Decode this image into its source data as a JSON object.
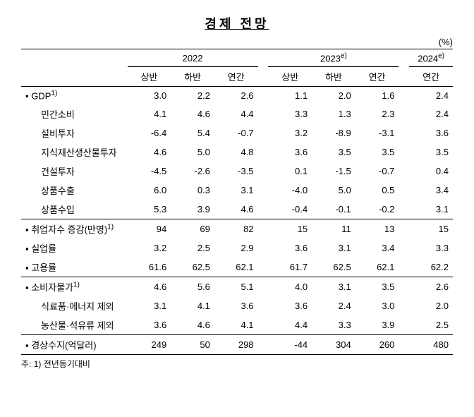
{
  "title": "경제 전망",
  "unit": "(%)",
  "headers": {
    "y2022": "2022",
    "y2023": "2023",
    "y2024": "2024",
    "sup_e": "e)",
    "h1": "상반",
    "h2": "하반",
    "annual": "연간"
  },
  "rows": [
    {
      "label": "▪ GDP",
      "sup": "1)",
      "indent": false,
      "v": [
        "3.0",
        "2.2",
        "2.6",
        "1.1",
        "2.0",
        "1.6",
        "2.4"
      ]
    },
    {
      "label": "민간소비",
      "sup": "",
      "indent": true,
      "v": [
        "4.1",
        "4.6",
        "4.4",
        "3.3",
        "1.3",
        "2.3",
        "2.4"
      ]
    },
    {
      "label": "설비투자",
      "sup": "",
      "indent": true,
      "v": [
        "-6.4",
        "5.4",
        "-0.7",
        "3.2",
        "-8.9",
        "-3.1",
        "3.6"
      ]
    },
    {
      "label": "지식재산생산물투자",
      "sup": "",
      "indent": true,
      "v": [
        "4.6",
        "5.0",
        "4.8",
        "3.6",
        "3.5",
        "3.5",
        "3.5"
      ]
    },
    {
      "label": "건설투자",
      "sup": "",
      "indent": true,
      "v": [
        "-4.5",
        "-2.6",
        "-3.5",
        "0.1",
        "-1.5",
        "-0.7",
        "0.4"
      ]
    },
    {
      "label": "상품수출",
      "sup": "",
      "indent": true,
      "v": [
        "6.0",
        "0.3",
        "3.1",
        "-4.0",
        "5.0",
        "0.5",
        "3.4"
      ]
    },
    {
      "label": "상품수입",
      "sup": "",
      "indent": true,
      "v": [
        "5.3",
        "3.9",
        "4.6",
        "-0.4",
        "-0.1",
        "-0.2",
        "3.1"
      ]
    },
    {
      "label": "▪ 취업자수 증감(만명)",
      "sup": "1)",
      "indent": false,
      "v": [
        "94",
        "69",
        "82",
        "15",
        "11",
        "13",
        "15"
      ]
    },
    {
      "label": "▪ 실업률",
      "sup": "",
      "indent": false,
      "v": [
        "3.2",
        "2.5",
        "2.9",
        "3.6",
        "3.1",
        "3.4",
        "3.3"
      ]
    },
    {
      "label": "▪ 고용률",
      "sup": "",
      "indent": false,
      "v": [
        "61.6",
        "62.5",
        "62.1",
        "61.7",
        "62.5",
        "62.1",
        "62.2"
      ]
    },
    {
      "label": "▪ 소비자물가",
      "sup": "1)",
      "indent": false,
      "v": [
        "4.6",
        "5.6",
        "5.1",
        "4.0",
        "3.1",
        "3.5",
        "2.6"
      ]
    },
    {
      "label": "식료품·에너지 제외",
      "sup": "",
      "indent": true,
      "v": [
        "3.1",
        "4.1",
        "3.6",
        "3.6",
        "2.4",
        "3.0",
        "2.0"
      ]
    },
    {
      "label": "농산물·석유류 제외",
      "sup": "",
      "indent": true,
      "v": [
        "3.6",
        "4.6",
        "4.1",
        "4.4",
        "3.3",
        "3.9",
        "2.5"
      ]
    },
    {
      "label": "▪ 경상수지(억달러)",
      "sup": "",
      "indent": false,
      "v": [
        "249",
        "50",
        "298",
        "-44",
        "304",
        "260",
        "480"
      ]
    }
  ],
  "footnote": "주: 1) 전년동기대비"
}
